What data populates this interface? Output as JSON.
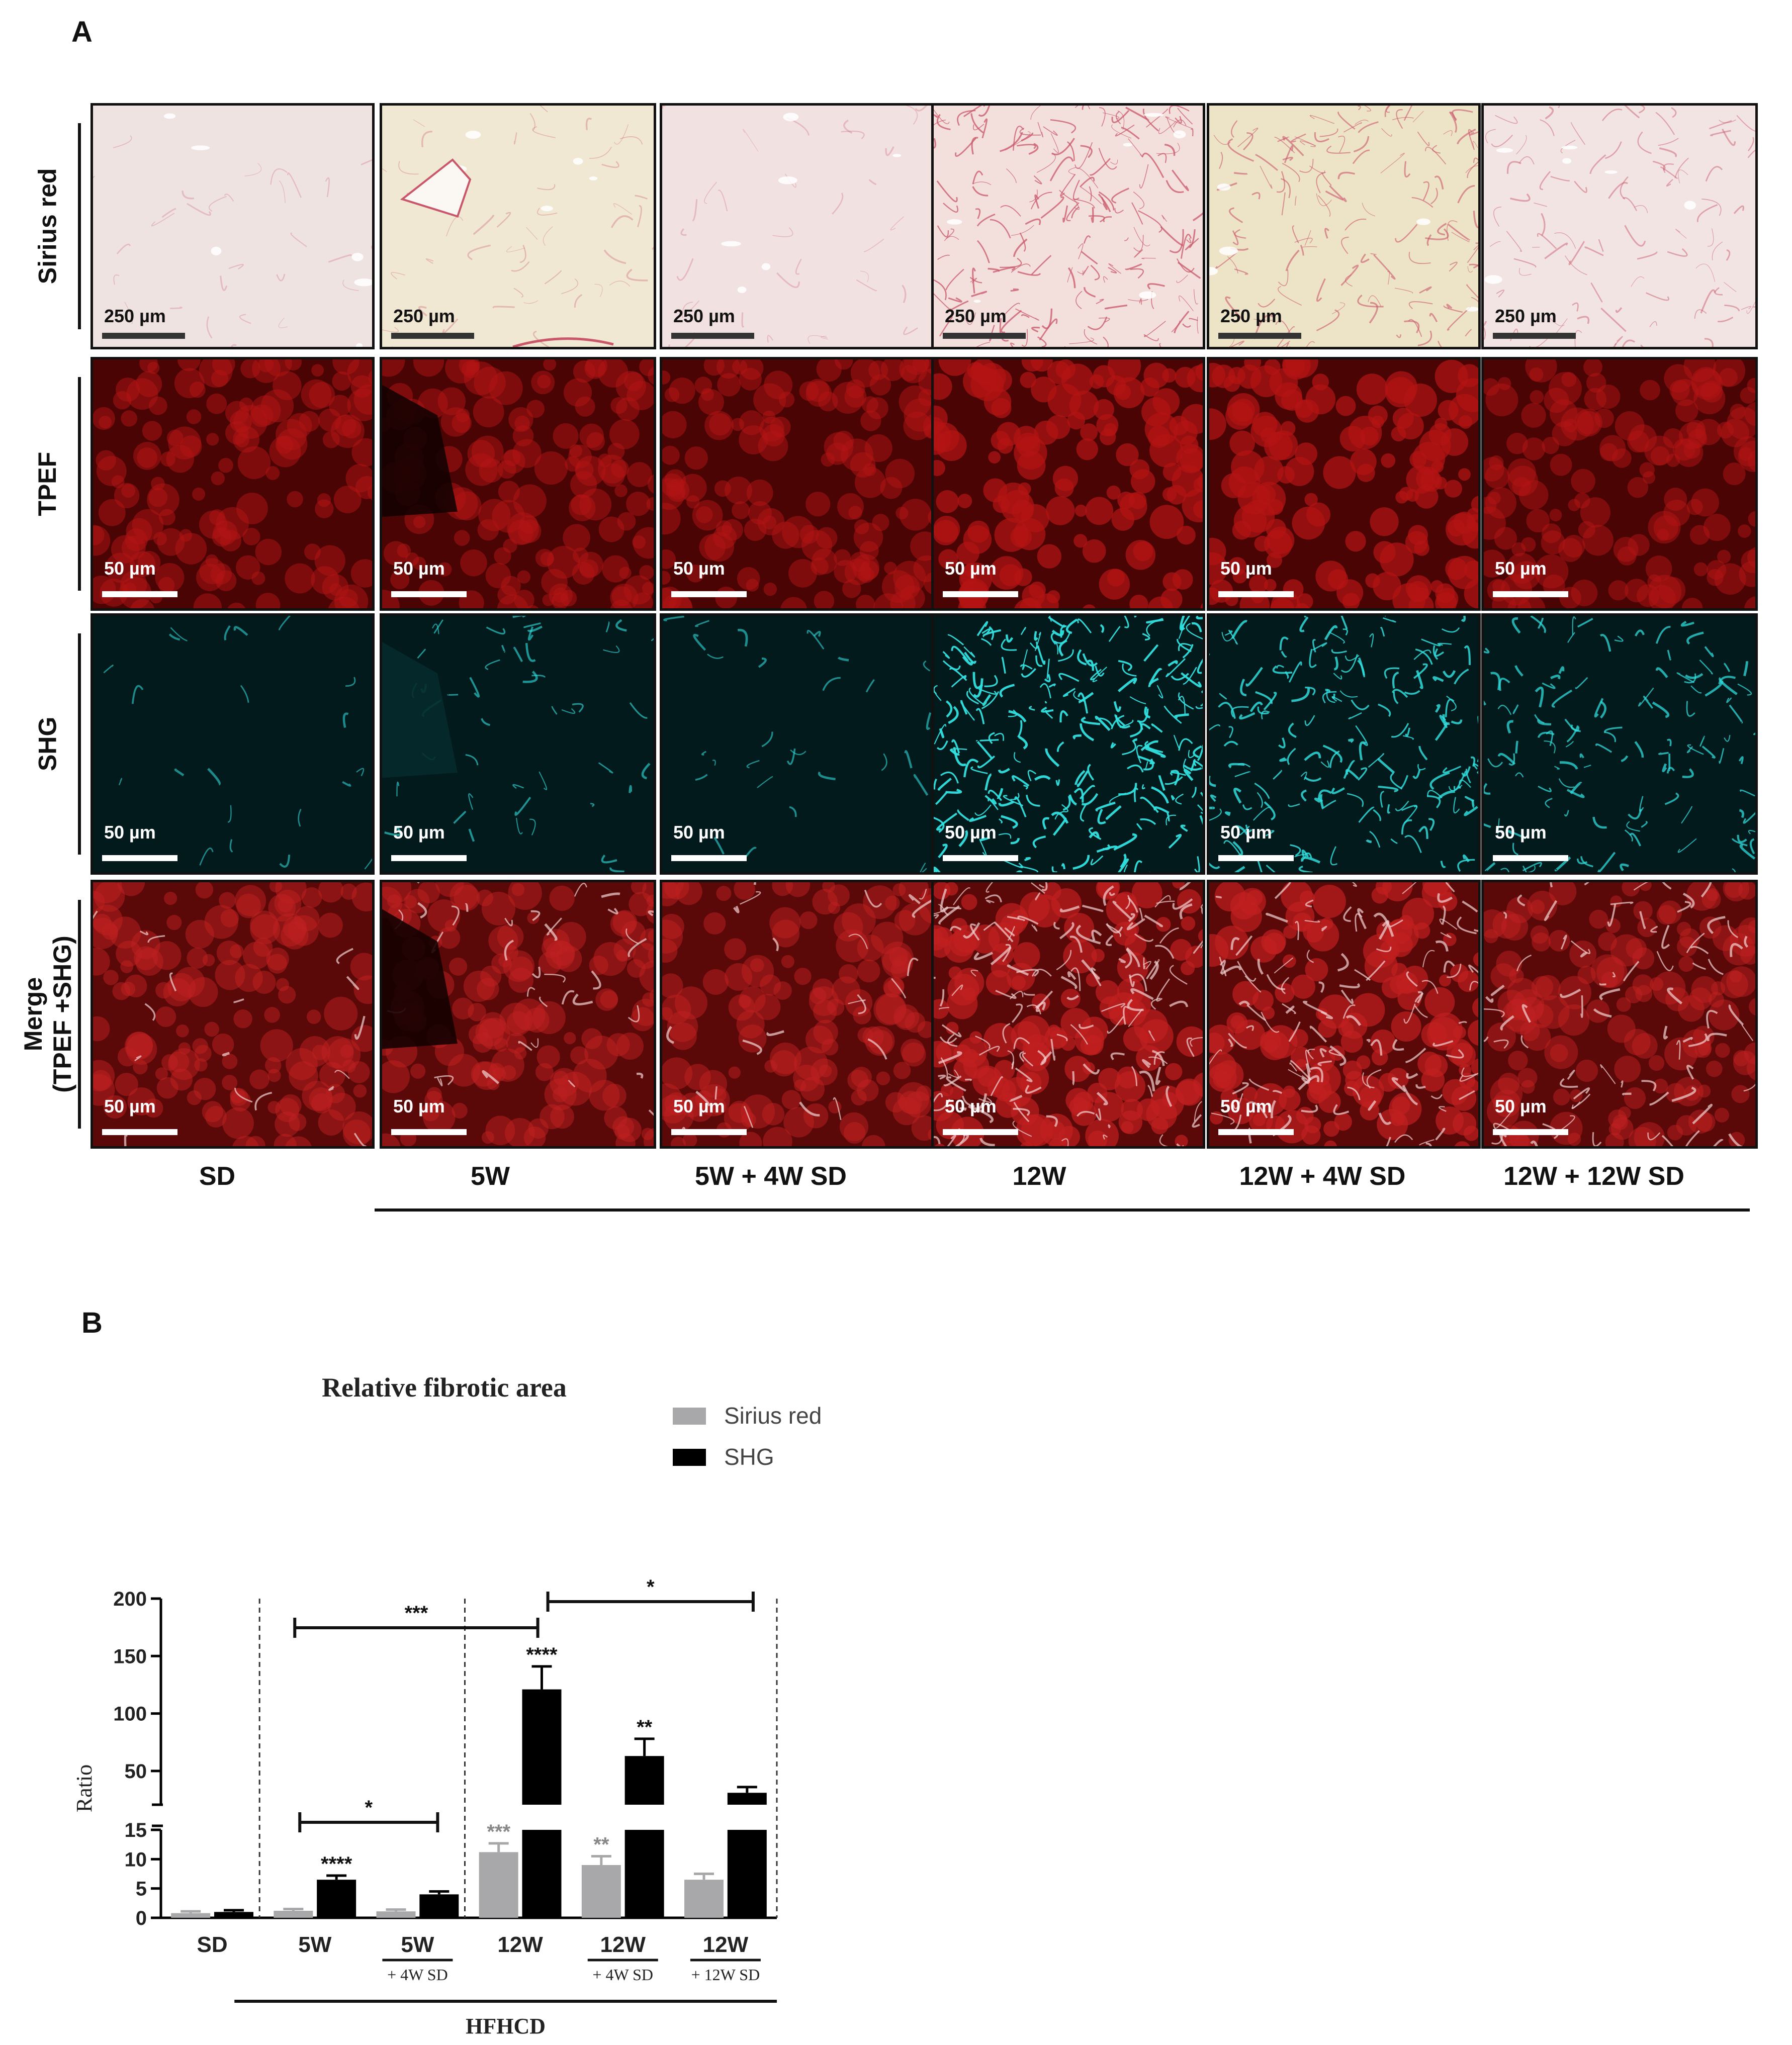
{
  "panel_a": {
    "letter": "A",
    "rows": [
      {
        "id": "sirius",
        "label": [
          "Sirius red"
        ],
        "scale": "250 µm"
      },
      {
        "id": "tpef",
        "label": [
          "TPEF"
        ],
        "scale": "50 µm"
      },
      {
        "id": "shg",
        "label": [
          "SHG"
        ],
        "scale": "50 µm"
      },
      {
        "id": "merge",
        "label": [
          "Merge",
          "(TPEF +SHG)"
        ],
        "scale": "50 µm"
      }
    ],
    "columns": [
      "SD",
      "5W",
      "5W + 4W SD",
      "12W",
      "12W + 4W SD",
      "12W + 12W SD"
    ],
    "colors": {
      "sirius_bg": [
        "#efe3e1",
        "#f0e8d2",
        "#f1e2e1",
        "#f3e0dc",
        "#ede4c8",
        "#f2e4e2"
      ],
      "sirius_fiber": "#c9566a",
      "tpef": "#b41414",
      "shg": "#30e0e0",
      "merge": "#c02020"
    }
  },
  "panel_b": {
    "letter": "B",
    "chart_data": {
      "type": "bar",
      "title": "Relative fibrotic area",
      "ylabel": "Ratio",
      "xlabel": "HFHCD",
      "categories": [
        {
          "main": "SD",
          "sub": ""
        },
        {
          "main": "5W",
          "sub": ""
        },
        {
          "main": "5W",
          "sub": "+ 4W SD"
        },
        {
          "main": "12W",
          "sub": ""
        },
        {
          "main": "12W",
          "sub": "+ 4W SD"
        },
        {
          "main": "12W",
          "sub": "+ 12W SD"
        }
      ],
      "series": [
        {
          "name": "Sirius red",
          "color": "#a8a8aa",
          "values": [
            0.8,
            1.2,
            1.1,
            11.2,
            9.0,
            6.5
          ],
          "errors": [
            0.3,
            0.3,
            0.3,
            1.5,
            1.5,
            1.0
          ],
          "labels": [
            "",
            "",
            "",
            "***",
            "**",
            ""
          ]
        },
        {
          "name": "SHG",
          "color": "#000000",
          "values": [
            1.0,
            6.5,
            4.0,
            121,
            63,
            31
          ],
          "errors": [
            0.3,
            0.7,
            0.5,
            20,
            15,
            5
          ],
          "labels": [
            "",
            "****",
            "",
            "****",
            "**",
            ""
          ]
        }
      ],
      "y_ticks_lower": [
        0,
        5,
        10,
        15
      ],
      "y_ticks_upper": [
        50,
        100,
        150,
        200
      ],
      "y_break": [
        15,
        25
      ],
      "ylim": [
        0,
        200
      ],
      "comparisons": [
        {
          "from": "5W",
          "to": "12W",
          "label": "***"
        },
        {
          "from": "12W",
          "to": "12W + 12W SD",
          "label": "*"
        },
        {
          "from": "5W",
          "to": "5W + 4W SD",
          "label": "*"
        }
      ],
      "grid": false,
      "legend": "top-right"
    }
  }
}
